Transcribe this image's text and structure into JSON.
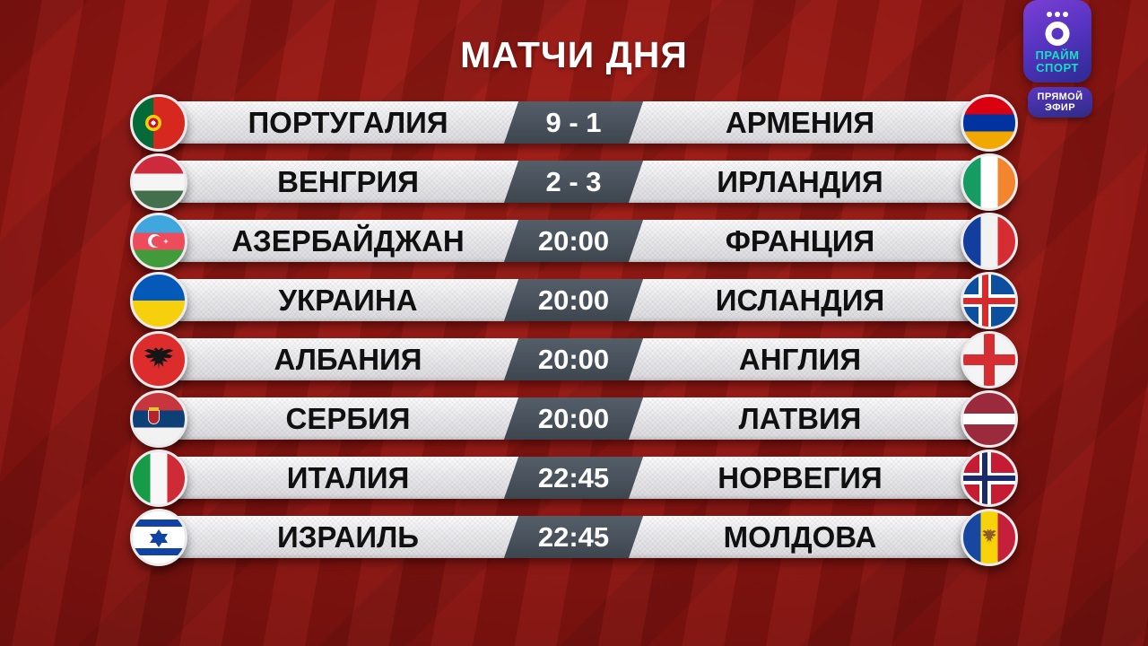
{
  "title": "МАТЧИ ДНЯ",
  "channel": {
    "name_line1": "ПРАЙМ",
    "name_line2": "СПОРТ",
    "live_line1": "ПРЯМОЙ",
    "live_line2": "ЭФИР"
  },
  "colors": {
    "background_red": "#8c1410",
    "bar_light": "#e9e9ec",
    "score_panel": "#49525c",
    "brand_purple": "#5633c0",
    "brand_cyan": "#14e2bf",
    "team_text": "#101010",
    "score_text": "#ffffff"
  },
  "matches": [
    {
      "home": "ПОРТУГАЛИЯ",
      "center": "9 - 1",
      "away": "АРМЕНИЯ",
      "home_flag": "portugal",
      "away_flag": "armenia"
    },
    {
      "home": "ВЕНГРИЯ",
      "center": "2 - 3",
      "away": "ИРЛАНДИЯ",
      "home_flag": "hungary",
      "away_flag": "ireland"
    },
    {
      "home": "АЗЕРБАЙДЖАН",
      "center": "20:00",
      "away": "ФРАНЦИЯ",
      "home_flag": "azerbaijan",
      "away_flag": "france"
    },
    {
      "home": "УКРАИНА",
      "center": "20:00",
      "away": "ИСЛАНДИЯ",
      "home_flag": "ukraine",
      "away_flag": "iceland"
    },
    {
      "home": "АЛБАНИЯ",
      "center": "20:00",
      "away": "АНГЛИЯ",
      "home_flag": "albania",
      "away_flag": "england"
    },
    {
      "home": "СЕРБИЯ",
      "center": "20:00",
      "away": "ЛАТВИЯ",
      "home_flag": "serbia",
      "away_flag": "latvia"
    },
    {
      "home": "ИТАЛИЯ",
      "center": "22:45",
      "away": "НОРВЕГИЯ",
      "home_flag": "italy",
      "away_flag": "norway"
    },
    {
      "home": "ИЗРАИЛЬ",
      "center": "22:45",
      "away": "МОЛДОВА",
      "home_flag": "israel",
      "away_flag": "moldova"
    }
  ]
}
